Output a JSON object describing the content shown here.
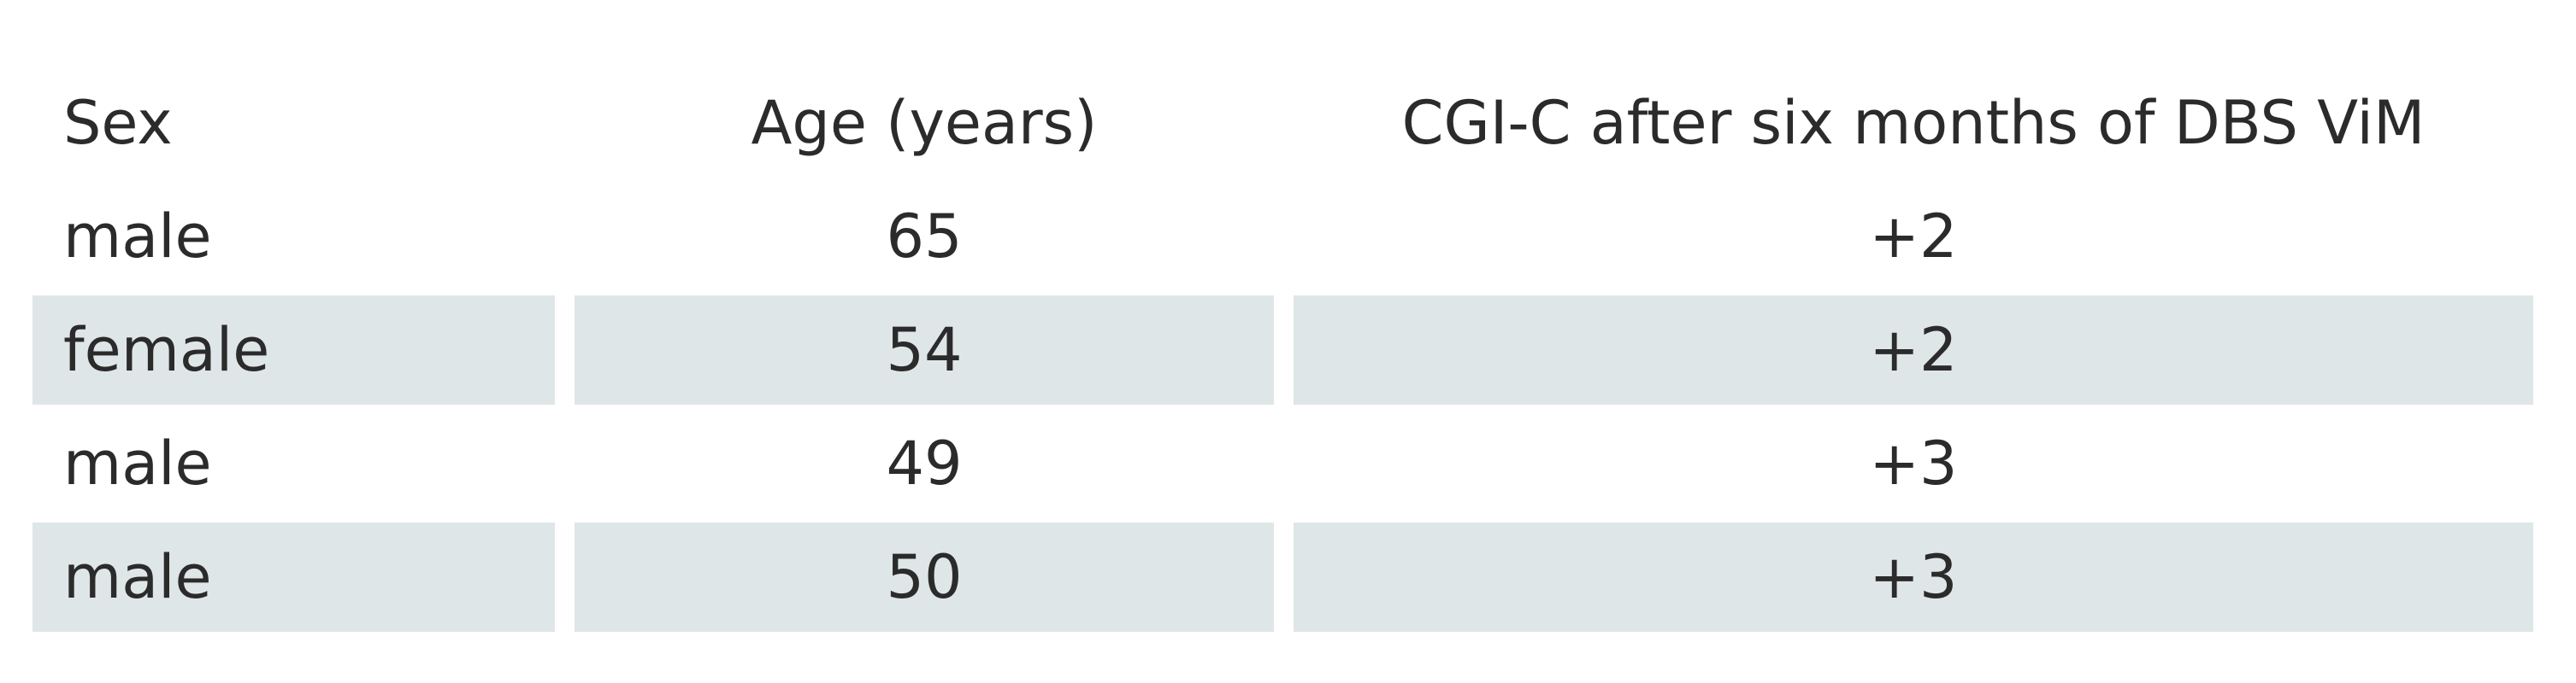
{
  "table": {
    "header": [
      "Sex",
      "Age (years)",
      "CGI-C after six months of DBS ViM"
    ],
    "rows": [
      [
        "male",
        "65",
        "+2"
      ],
      [
        "female",
        "54",
        "+2"
      ],
      [
        "male",
        "49",
        "+3"
      ],
      [
        "male",
        "50",
        "+3"
      ]
    ]
  }
}
